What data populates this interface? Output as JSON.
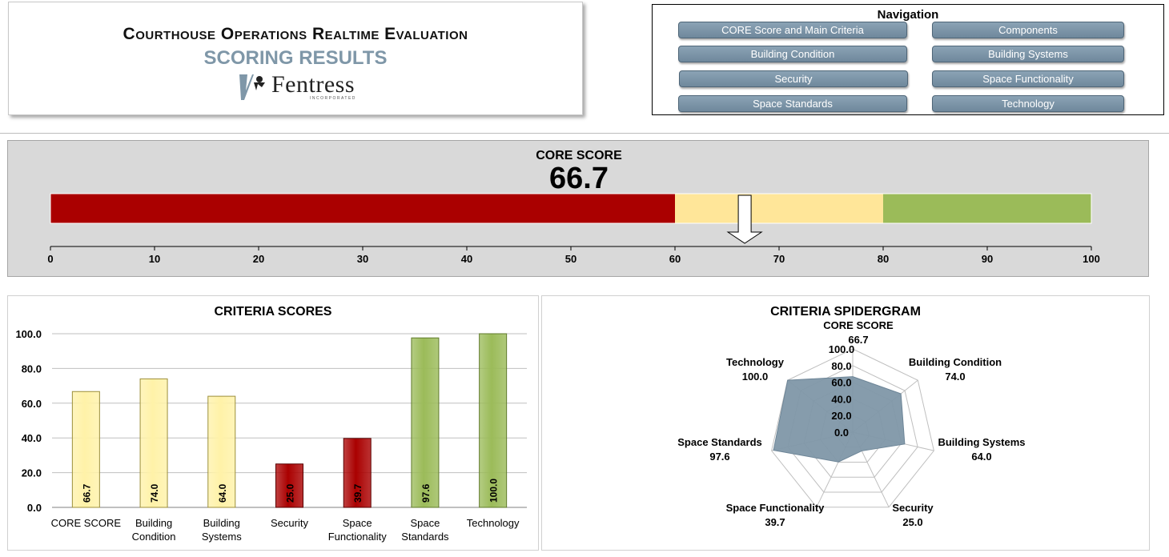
{
  "header": {
    "title": "Courthouse Operations Realtime Evaluation",
    "subtitle": "SCORING RESULTS",
    "logo_name": "Fentress",
    "logo_sub": "INCORPORATED"
  },
  "navigation": {
    "title": "Navigation",
    "buttons": [
      "CORE Score and Main Criteria",
      "Components",
      "Building Condition",
      "Building Systems",
      "Security",
      "Space Functionality",
      "Space Standards",
      "Technology"
    ]
  },
  "core": {
    "label": "CORE SCORE",
    "value": "66.7",
    "score": 66.7,
    "axis_ticks": [
      0,
      10,
      20,
      30,
      40,
      50,
      60,
      70,
      80,
      90,
      100
    ],
    "bands": [
      {
        "from": 0,
        "to": 60,
        "color": "#aa0000"
      },
      {
        "from": 60,
        "to": 80,
        "color": "#ffe699"
      },
      {
        "from": 80,
        "to": 100,
        "color": "#9bbb59"
      }
    ]
  },
  "chart_data": [
    {
      "type": "bar",
      "title": "CRITERIA SCORES",
      "categories": [
        "CORE SCORE",
        "Building Condition",
        "Building Systems",
        "Security",
        "Space Functionality",
        "Space Standards",
        "Technology"
      ],
      "values": [
        66.7,
        74.0,
        64.0,
        25.0,
        39.7,
        97.6,
        100.0
      ],
      "value_labels": [
        "66.7",
        "74.0",
        "64.0",
        "25.0",
        "39.7",
        "97.6",
        "100.0"
      ],
      "y_ticks": [
        "0.0",
        "20.0",
        "40.0",
        "60.0",
        "80.0",
        "100.0"
      ],
      "ylim": [
        0,
        100
      ],
      "colors": [
        "#fff2a8",
        "#fff2a8",
        "#fff2a8",
        "#aa0000",
        "#aa0000",
        "#9bbb59",
        "#9bbb59"
      ],
      "grid": true
    },
    {
      "type": "radar",
      "title": "CRITERIA SPIDERGRAM",
      "categories": [
        "CORE SCORE",
        "Building Condition",
        "Building Systems",
        "Security",
        "Space Functionality",
        "Space Standards",
        "Technology"
      ],
      "values": [
        66.7,
        74.0,
        64.0,
        25.0,
        39.7,
        97.6,
        100.0
      ],
      "value_labels": [
        "66.7",
        "74.0",
        "64.0",
        "25.0",
        "39.7",
        "97.6",
        "100.0"
      ],
      "r_ticks": [
        "0.0",
        "20.0",
        "40.0",
        "60.0",
        "80.0",
        "100.0"
      ],
      "rlim": [
        0,
        100
      ],
      "fill_color": "#7f97a8"
    }
  ]
}
